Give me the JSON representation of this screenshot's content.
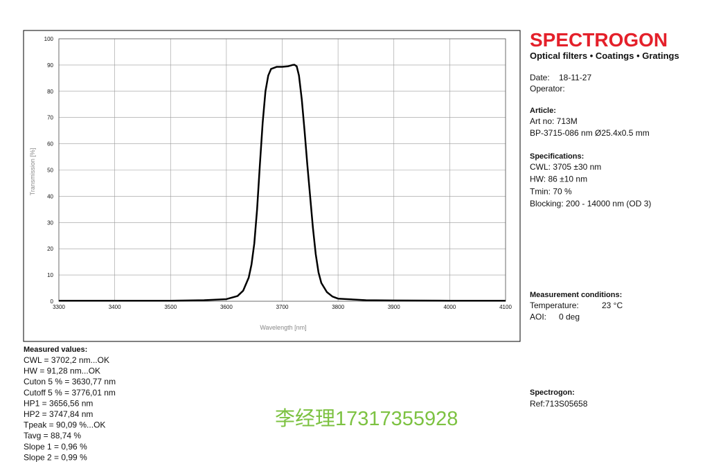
{
  "header": {
    "logo": "SPECTROGON",
    "tagline": "Optical filters • Coatings • Gratings"
  },
  "info": [
    [
      "Date:",
      "18-11-27"
    ],
    [
      "Operator:",
      ""
    ]
  ],
  "article": {
    "heading": "Article:",
    "lines": [
      "Art no: 713M",
      "BP-3715-086 nm Ø25.4x0.5 mm"
    ]
  },
  "specifications": {
    "heading": "Specifications:",
    "lines": [
      "CWL: 3705 ±30 nm",
      "HW: 86 ±10 nm",
      "Tmin: 70 %",
      "Blocking: 200 - 14000 nm (OD 3)"
    ]
  },
  "measurement_conditions": {
    "heading": "Measurement conditions:",
    "rows": [
      [
        "Temperature:",
        "23 °C"
      ],
      [
        "AOI:",
        "0 deg"
      ]
    ]
  },
  "measured_values": {
    "heading": "Measured values:",
    "lines": [
      "CWL = 3702,2 nm...OK",
      "HW = 91,28 nm...OK",
      "Cuton 5 % = 3630,77 nm",
      "Cutoff 5 % = 3776,01 nm",
      "HP1 = 3656,56 nm",
      "HP2 = 3747,84 nm",
      "Tpeak = 90,09 %...OK",
      "Tavg = 88,74 %",
      "Slope 1 = 0,96 %",
      "Slope 2 = 0,99 %"
    ]
  },
  "spectrogon": {
    "heading": "Spectrogon:",
    "ref": "Ref:713S05658"
  },
  "watermark": "李经理17317355928",
  "chart_data": {
    "type": "line",
    "x_label": "Wavelength [nm]",
    "y_label": "Transmission [%]",
    "x": [
      3300,
      3400,
      3500,
      3560,
      3600,
      3620,
      3630,
      3640,
      3645,
      3650,
      3655,
      3660,
      3665,
      3670,
      3675,
      3680,
      3690,
      3700,
      3710,
      3718,
      3722,
      3726,
      3730,
      3735,
      3740,
      3745,
      3750,
      3755,
      3760,
      3765,
      3770,
      3780,
      3790,
      3800,
      3850,
      3900,
      4000,
      4100
    ],
    "series": [
      {
        "color": "#000000",
        "values": [
          0.2,
          0.2,
          0.2,
          0.4,
          0.8,
          2,
          4,
          9,
          14,
          22,
          35,
          52,
          68,
          80,
          86,
          88.5,
          89.3,
          89.3,
          89.5,
          90,
          90.1,
          89.5,
          86,
          77,
          65,
          52,
          40,
          28,
          18,
          11,
          7,
          3.5,
          1.8,
          1,
          0.4,
          0.3,
          0.2,
          0.2
        ]
      }
    ],
    "xlim": [
      3300,
      4100
    ],
    "xticks": [
      3300,
      3400,
      3500,
      3600,
      3700,
      3800,
      3900,
      4000,
      4100
    ],
    "ylim": [
      0,
      100
    ],
    "yticks": [
      0,
      10,
      20,
      30,
      40,
      50,
      60,
      70,
      80,
      90,
      100
    ],
    "grid": true
  }
}
